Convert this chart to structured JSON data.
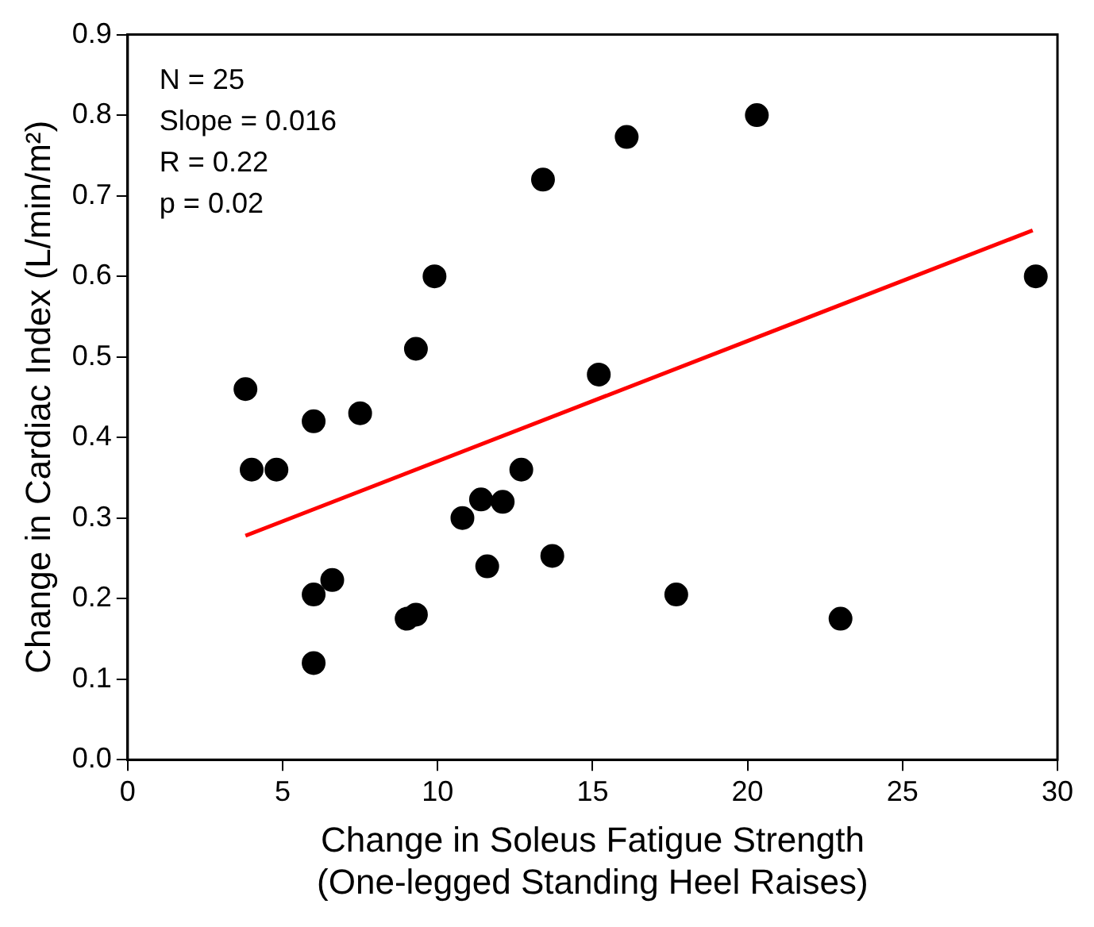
{
  "chart_data": {
    "type": "scatter",
    "xlabel": "Change in Soleus Fatigue Strength\n(One-legged Standing Heel Raises)",
    "ylabel": "Change in Cardiac Index (L/min/m²)",
    "xlim": [
      0,
      30
    ],
    "xticks": [
      0,
      5,
      10,
      15,
      20,
      25,
      30
    ],
    "ylim": [
      0,
      0.9
    ],
    "yticks": [
      {
        "value": 0,
        "label": "0.0"
      },
      0.1,
      0.2,
      0.3,
      0.4,
      0.5,
      0.6,
      0.7,
      0.8,
      0.9
    ],
    "grid": false,
    "legend": false,
    "marker": "circle",
    "annotations": [
      "N = 25",
      "Slope = 0.016",
      "R = 0.22",
      "p = 0.02"
    ],
    "series": [
      {
        "type": "scatter",
        "color": "#000000",
        "x": [
          3.8,
          4.0,
          4.8,
          6.0,
          6.0,
          6.0,
          6.6,
          7.5,
          9.0,
          9.3,
          9.3,
          9.9,
          10.8,
          11.4,
          11.6,
          12.1,
          12.7,
          13.4,
          13.7,
          15.2,
          16.1,
          17.7,
          20.3,
          23.0,
          29.3
        ],
        "values": [
          0.46,
          0.36,
          0.36,
          0.42,
          0.205,
          0.12,
          0.223,
          0.43,
          0.175,
          0.18,
          0.51,
          0.6,
          0.3,
          0.323,
          0.24,
          0.32,
          0.36,
          0.72,
          0.253,
          0.478,
          0.773,
          0.205,
          0.8,
          0.175,
          0.6
        ]
      },
      {
        "type": "line",
        "marker": "none",
        "color": "#ff0000",
        "x": [
          3.8,
          29.2
        ],
        "values": [
          0.278,
          0.657
        ]
      }
    ]
  }
}
